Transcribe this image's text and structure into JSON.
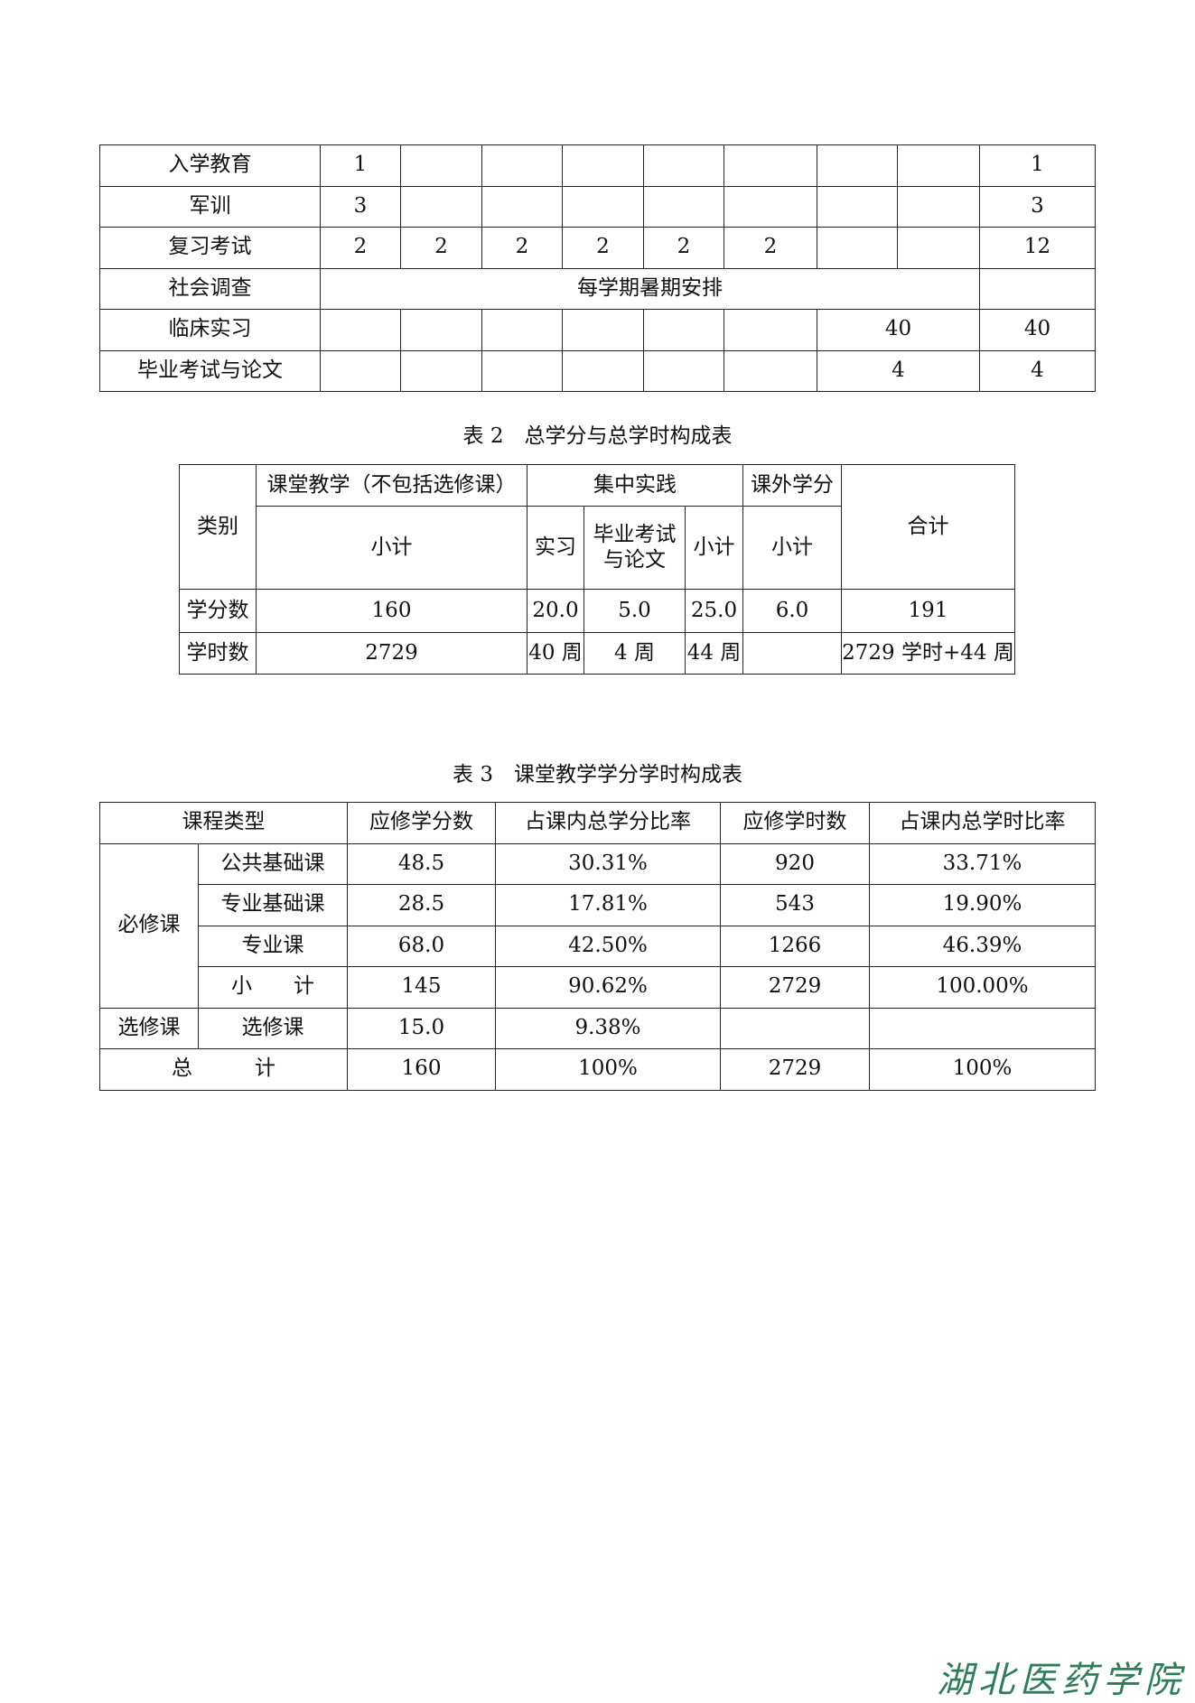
{
  "table1": {
    "rows": [
      {
        "label": "入学教育",
        "cells": [
          "1",
          "",
          "",
          "",
          "",
          "",
          "",
          ""
        ],
        "total": "1"
      },
      {
        "label": "军训",
        "cells": [
          "3",
          "",
          "",
          "",
          "",
          "",
          "",
          ""
        ],
        "total": "3"
      },
      {
        "label": "复习考试",
        "cells": [
          "2",
          "2",
          "2",
          "2",
          "2",
          "2",
          "",
          ""
        ],
        "total": "12"
      },
      {
        "label": "临床实习",
        "cells": [
          "",
          "",
          "",
          "",
          "",
          ""
        ],
        "merged": "40",
        "total": "40"
      },
      {
        "label": "毕业考试与论文",
        "cells": [
          "",
          "",
          "",
          "",
          "",
          ""
        ],
        "merged": "4",
        "total": "4"
      }
    ],
    "social": {
      "label": "社会调查",
      "text": "每学期暑期安排",
      "total": ""
    }
  },
  "table2": {
    "caption": "表 2　总学分与总学时构成表",
    "h_category": "类别",
    "h_classroom": "课堂教学（不包括选修课）",
    "h_practice": "集中实践",
    "h_extra": "课外学分",
    "h_total": "合计",
    "sub_subtotal": "小计",
    "sub_intern": "实习",
    "sub_exam": "毕业考试与论文",
    "credits": {
      "label": "学分数",
      "values": [
        "160",
        "20.0",
        "5.0",
        "25.0",
        "6.0",
        "191"
      ]
    },
    "hours": {
      "label": "学时数",
      "values": [
        "2729",
        "40 周",
        "4 周",
        "44 周",
        "",
        "2729 学时+44 周"
      ]
    }
  },
  "table3": {
    "caption": "表 3　课堂教学学分学时构成表",
    "headers": [
      "课程类型",
      "应修学分数",
      "占课内总学分比率",
      "应修学时数",
      "占课内总学时比率"
    ],
    "required_label": "必修课",
    "required_rows": [
      [
        "公共基础课",
        "48.5",
        "30.31%",
        "920",
        "33.71%"
      ],
      [
        "专业基础课",
        "28.5",
        "17.81%",
        "543",
        "19.90%"
      ],
      [
        "专业课",
        "68.0",
        "42.50%",
        "1266",
        "46.39%"
      ],
      [
        "小　　计",
        "145",
        "90.62%",
        "2729",
        "100.00%"
      ]
    ],
    "elective_label": "选修课",
    "elective_row": [
      "选修课",
      "15.0",
      "9.38%",
      "",
      ""
    ],
    "total_row": [
      "总　　　计",
      "160",
      "100%",
      "2729",
      "100%"
    ]
  },
  "logo_text": "湖北医药学院"
}
